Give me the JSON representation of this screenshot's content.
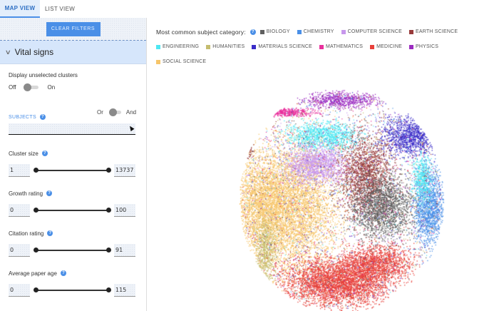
{
  "tabs": [
    {
      "label": "MAP VIEW",
      "active": true
    },
    {
      "label": "LIST VIEW",
      "active": false
    }
  ],
  "sidebar": {
    "clear_filters": "CLEAR FILTERS",
    "section_title": "Vital signs",
    "display_unselected": {
      "label": "Display unselected clusters",
      "off_label": "Off",
      "on_label": "On",
      "state": "off"
    },
    "subjects": {
      "label": "SUBJECTS",
      "or_label": "Or",
      "and_label": "And",
      "value": "",
      "placeholder": ""
    },
    "sliders": [
      {
        "label": "Cluster size",
        "min": "1",
        "max": "13737"
      },
      {
        "label": "Growth rating",
        "min": "0",
        "max": "100"
      },
      {
        "label": "Citation rating",
        "min": "0",
        "max": "91"
      },
      {
        "label": "Average paper age",
        "min": "0",
        "max": "115"
      }
    ]
  },
  "legend": {
    "title": "Most common subject category:",
    "items": [
      {
        "label": "BIOLOGY",
        "color": "#5f5f5f"
      },
      {
        "label": "CHEMISTRY",
        "color": "#4a8fe7"
      },
      {
        "label": "COMPUTER SCIENCE",
        "color": "#c797ec"
      },
      {
        "label": "EARTH SCIENCE",
        "color": "#973a3a"
      },
      {
        "label": "ENGINEERING",
        "color": "#4ee7f2"
      },
      {
        "label": "HUMANITIES",
        "color": "#c5bd6f"
      },
      {
        "label": "MATERIALS SCIENCE",
        "color": "#3a2cc8"
      },
      {
        "label": "MATHEMATICS",
        "color": "#e8309c"
      },
      {
        "label": "MEDICINE",
        "color": "#e8403a"
      },
      {
        "label": "PHYSICS",
        "color": "#9b2bc0"
      },
      {
        "label": "SOCIAL SCIENCE",
        "color": "#f6c56a"
      }
    ]
  },
  "icons": {
    "help": "?",
    "chevron": "∨"
  }
}
